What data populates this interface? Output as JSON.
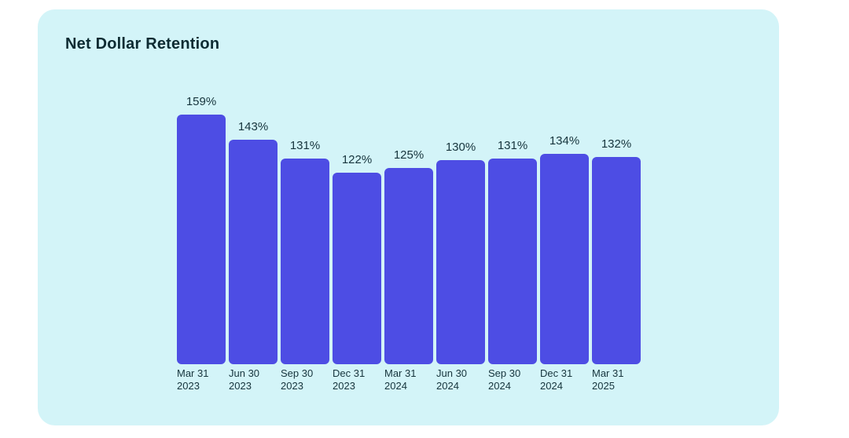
{
  "card": {
    "title": "Net Dollar Retention",
    "background_color": "#d3f4f8",
    "page_background_color": "#ffffff"
  },
  "chart_data": {
    "type": "bar",
    "title": "Net Dollar Retention",
    "categories": [
      [
        "Mar 31",
        "2023"
      ],
      [
        "Jun 30",
        "2023"
      ],
      [
        "Sep 30",
        "2023"
      ],
      [
        "Dec 31",
        "2023"
      ],
      [
        "Mar 31",
        "2024"
      ],
      [
        "Jun 30",
        "2024"
      ],
      [
        "Sep 30",
        "2024"
      ],
      [
        "Dec 31",
        "2024"
      ],
      [
        "Mar 31",
        "2025"
      ]
    ],
    "values": [
      159,
      143,
      131,
      122,
      125,
      130,
      131,
      134,
      132
    ],
    "value_labels": [
      "159%",
      "143%",
      "131%",
      "122%",
      "125%",
      "130%",
      "131%",
      "134%",
      "132%"
    ],
    "unit": "%",
    "xlabel": "",
    "ylabel": "",
    "ylim": [
      0,
      160
    ],
    "grid": false,
    "legend": false,
    "axes_shown": false,
    "bar_color": "#4d4de4",
    "label_color": "#16343c"
  }
}
